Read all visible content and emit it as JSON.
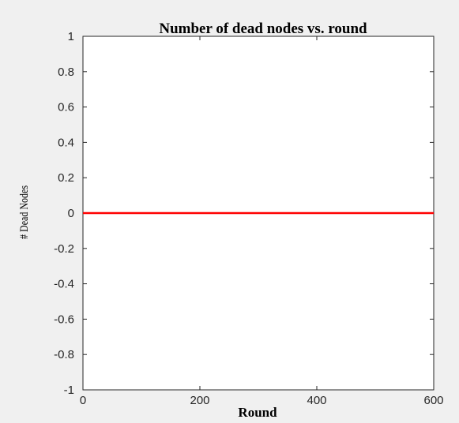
{
  "chart_data": {
    "type": "line",
    "title": "Number of dead nodes vs. round",
    "xlabel": "Round",
    "ylabel": "# Dead Nodes",
    "xlim": [
      0,
      600
    ],
    "ylim": [
      -1,
      1
    ],
    "xticks": [
      0,
      200,
      400,
      600
    ],
    "xtick_labels": [
      "0",
      "200",
      "400",
      "600"
    ],
    "yticks": [
      1,
      0.8,
      0.6,
      0.4,
      0.2,
      0,
      -0.2,
      -0.4,
      -0.6,
      -0.8,
      -1
    ],
    "ytick_labels": [
      "1",
      "0.8",
      "0.6",
      "0.4",
      "0.2",
      "0",
      "-0.2",
      "-0.4",
      "-0.6",
      "-0.8",
      "-1"
    ],
    "grid": false,
    "series": [
      {
        "color": "#ff0000",
        "x": [
          0,
          600
        ],
        "y": [
          0,
          0
        ]
      }
    ]
  }
}
